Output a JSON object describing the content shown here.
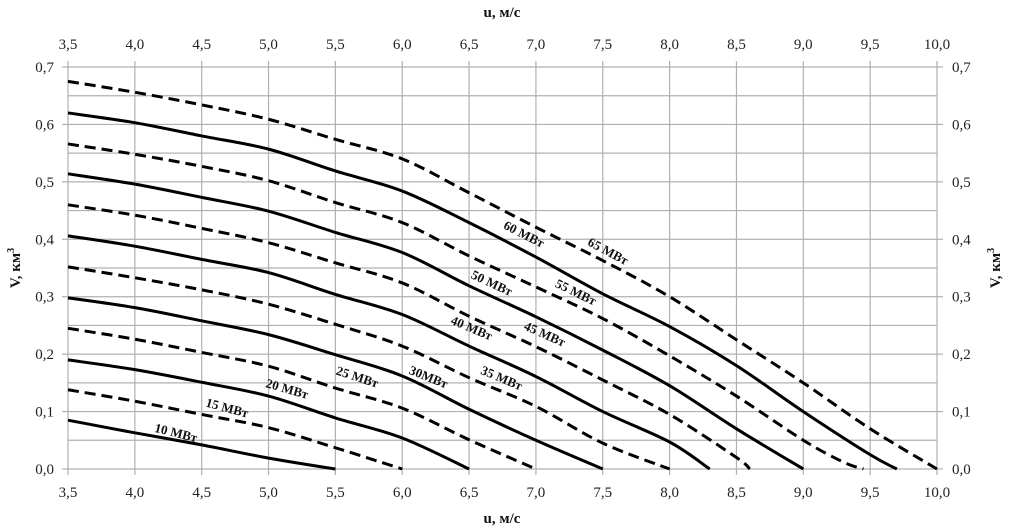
{
  "chart_data": {
    "type": "line",
    "title": "",
    "xlabel_top": "u, м/с",
    "xlabel_bottom": "u, м/с",
    "ylabel_left": "V, км",
    "ylabel_right": "V, км",
    "ylabel_superscript": "3",
    "xlim": [
      3.5,
      10.0
    ],
    "ylim": [
      0.0,
      0.7
    ],
    "x_ticks": [
      "3,5",
      "4,0",
      "4,5",
      "5,0",
      "5,5",
      "6,0",
      "6,5",
      "7,0",
      "7,5",
      "8,0",
      "8,5",
      "9,0",
      "9,5",
      "10,0"
    ],
    "y_ticks": [
      "0,0",
      "0,1",
      "0,2",
      "0,3",
      "0,4",
      "0,5",
      "0,6",
      "0,7"
    ],
    "grid": true,
    "line_color": "#000000",
    "grid_color": "#b0b0b0",
    "series": [
      {
        "name": "10 МВт",
        "style": "solid",
        "points": [
          [
            3.5,
            0.085
          ],
          [
            4.0,
            0.063
          ],
          [
            4.5,
            0.042
          ],
          [
            5.0,
            0.019
          ],
          [
            5.5,
            0.0
          ]
        ]
      },
      {
        "name": "15 МВт",
        "style": "dashed",
        "points": [
          [
            3.5,
            0.138
          ],
          [
            4.0,
            0.118
          ],
          [
            4.5,
            0.095
          ],
          [
            5.0,
            0.072
          ],
          [
            5.5,
            0.037
          ],
          [
            6.0,
            0.0
          ]
        ]
      },
      {
        "name": "20 МВт",
        "style": "solid",
        "points": [
          [
            3.5,
            0.19
          ],
          [
            4.0,
            0.173
          ],
          [
            4.5,
            0.151
          ],
          [
            5.0,
            0.127
          ],
          [
            5.5,
            0.089
          ],
          [
            6.0,
            0.054
          ],
          [
            6.5,
            0.0
          ]
        ]
      },
      {
        "name": "25 МВт",
        "style": "dashed",
        "points": [
          [
            3.5,
            0.245
          ],
          [
            4.0,
            0.226
          ],
          [
            4.5,
            0.203
          ],
          [
            5.0,
            0.179
          ],
          [
            5.5,
            0.141
          ],
          [
            6.0,
            0.106
          ],
          [
            6.5,
            0.051
          ],
          [
            7.0,
            0.0
          ]
        ]
      },
      {
        "name": "30МВт",
        "style": "solid",
        "points": [
          [
            3.5,
            0.298
          ],
          [
            4.0,
            0.281
          ],
          [
            4.5,
            0.258
          ],
          [
            5.0,
            0.234
          ],
          [
            5.5,
            0.199
          ],
          [
            6.0,
            0.162
          ],
          [
            6.5,
            0.104
          ],
          [
            7.0,
            0.05
          ],
          [
            7.5,
            0.0
          ]
        ]
      },
      {
        "name": "35 МВт",
        "style": "dashed",
        "points": [
          [
            3.5,
            0.352
          ],
          [
            4.0,
            0.333
          ],
          [
            4.5,
            0.312
          ],
          [
            5.0,
            0.287
          ],
          [
            5.5,
            0.252
          ],
          [
            6.0,
            0.214
          ],
          [
            6.5,
            0.159
          ],
          [
            7.0,
            0.109
          ],
          [
            7.5,
            0.045
          ],
          [
            8.0,
            0.0
          ]
        ]
      },
      {
        "name": "40 МВт",
        "style": "solid",
        "points": [
          [
            3.5,
            0.406
          ],
          [
            4.0,
            0.388
          ],
          [
            4.5,
            0.365
          ],
          [
            5.0,
            0.342
          ],
          [
            5.5,
            0.304
          ],
          [
            6.0,
            0.269
          ],
          [
            6.5,
            0.214
          ],
          [
            7.0,
            0.161
          ],
          [
            7.5,
            0.1
          ],
          [
            8.0,
            0.047
          ],
          [
            8.3,
            0.0
          ]
        ]
      },
      {
        "name": "45 МВт",
        "style": "dashed",
        "points": [
          [
            3.5,
            0.46
          ],
          [
            4.0,
            0.442
          ],
          [
            4.5,
            0.419
          ],
          [
            5.0,
            0.394
          ],
          [
            5.5,
            0.359
          ],
          [
            6.0,
            0.324
          ],
          [
            6.5,
            0.266
          ],
          [
            7.0,
            0.213
          ],
          [
            7.5,
            0.155
          ],
          [
            8.0,
            0.095
          ],
          [
            8.5,
            0.02
          ],
          [
            8.6,
            0.0
          ]
        ]
      },
      {
        "name": "50 МВт",
        "style": "solid",
        "points": [
          [
            3.5,
            0.514
          ],
          [
            4.0,
            0.496
          ],
          [
            4.5,
            0.473
          ],
          [
            5.0,
            0.449
          ],
          [
            5.5,
            0.412
          ],
          [
            6.0,
            0.377
          ],
          [
            6.5,
            0.319
          ],
          [
            7.0,
            0.265
          ],
          [
            7.5,
            0.207
          ],
          [
            8.0,
            0.145
          ],
          [
            8.5,
            0.07
          ],
          [
            9.0,
            0.0
          ]
        ]
      },
      {
        "name": "55 МВт",
        "style": "dashed",
        "points": [
          [
            3.5,
            0.566
          ],
          [
            4.0,
            0.548
          ],
          [
            4.5,
            0.527
          ],
          [
            5.0,
            0.502
          ],
          [
            5.5,
            0.464
          ],
          [
            6.0,
            0.429
          ],
          [
            6.5,
            0.371
          ],
          [
            7.0,
            0.317
          ],
          [
            7.5,
            0.262
          ],
          [
            8.0,
            0.197
          ],
          [
            8.5,
            0.127
          ],
          [
            9.0,
            0.05
          ],
          [
            9.3,
            0.012
          ],
          [
            9.45,
            0.0
          ]
        ]
      },
      {
        "name": "60 МВт",
        "style": "solid",
        "points": [
          [
            3.5,
            0.62
          ],
          [
            4.0,
            0.603
          ],
          [
            4.5,
            0.58
          ],
          [
            5.0,
            0.557
          ],
          [
            5.5,
            0.519
          ],
          [
            6.0,
            0.484
          ],
          [
            6.5,
            0.429
          ],
          [
            7.0,
            0.369
          ],
          [
            7.5,
            0.305
          ],
          [
            8.0,
            0.248
          ],
          [
            8.5,
            0.18
          ],
          [
            9.0,
            0.1
          ],
          [
            9.5,
            0.025
          ],
          [
            9.7,
            0.0
          ]
        ]
      },
      {
        "name": "65 МВт",
        "style": "dashed",
        "points": [
          [
            3.5,
            0.675
          ],
          [
            4.0,
            0.656
          ],
          [
            4.5,
            0.634
          ],
          [
            5.0,
            0.609
          ],
          [
            5.5,
            0.574
          ],
          [
            6.0,
            0.54
          ],
          [
            6.5,
            0.481
          ],
          [
            7.0,
            0.421
          ],
          [
            7.5,
            0.363
          ],
          [
            8.0,
            0.3
          ],
          [
            8.5,
            0.225
          ],
          [
            9.0,
            0.15
          ],
          [
            9.5,
            0.07
          ],
          [
            10.0,
            0.0
          ]
        ]
      }
    ]
  }
}
